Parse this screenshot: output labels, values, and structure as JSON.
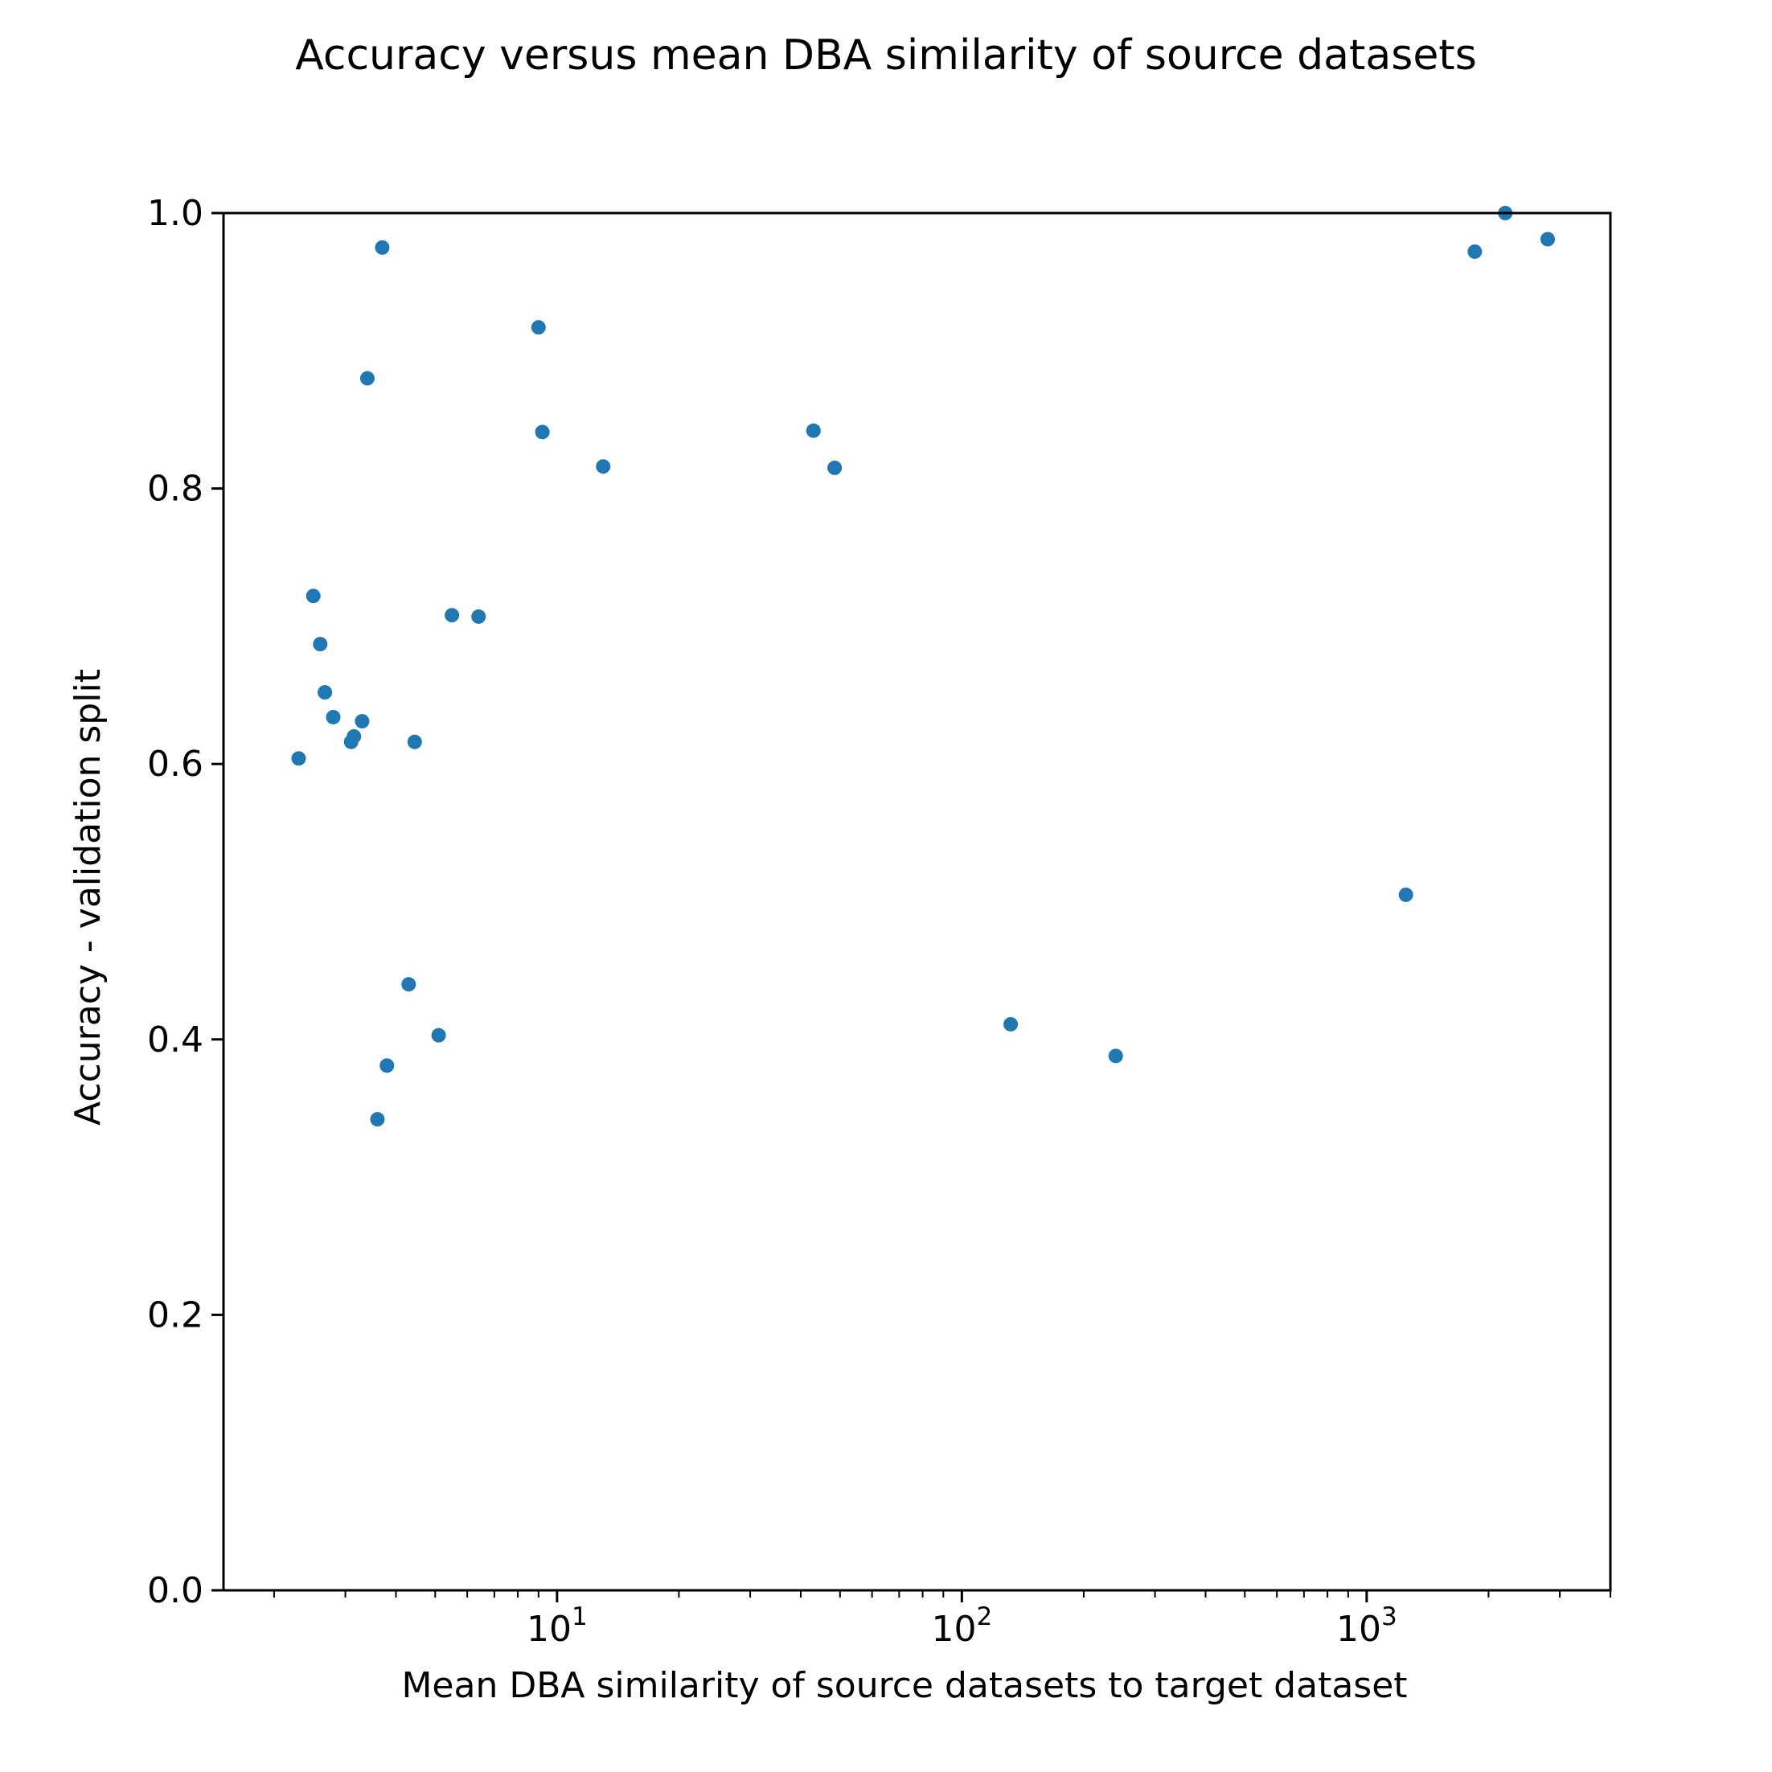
{
  "chart_data": {
    "type": "scatter",
    "title": "Accuracy versus mean DBA similarity of source datasets",
    "xlabel": "Mean DBA similarity of source datasets to target dataset",
    "ylabel": "Accuracy - validation split",
    "xscale": "log",
    "xlim": [
      1.5,
      4000
    ],
    "ylim": [
      0.0,
      1.0
    ],
    "grid": false,
    "legend": "none",
    "color": "#1f77b4",
    "yticks": [
      0.0,
      0.2,
      0.4,
      0.6,
      0.8,
      1.0
    ],
    "ytick_labels": [
      "0.0",
      "0.2",
      "0.4",
      "0.6",
      "0.8",
      "1.0"
    ],
    "xticks": [
      {
        "value": 10,
        "base": "10",
        "exp": "1"
      },
      {
        "value": 100,
        "base": "10",
        "exp": "2"
      },
      {
        "value": 1000,
        "base": "10",
        "exp": "3"
      }
    ],
    "points": [
      {
        "x": 2.3,
        "y": 0.604
      },
      {
        "x": 2.5,
        "y": 0.722
      },
      {
        "x": 2.6,
        "y": 0.687
      },
      {
        "x": 2.67,
        "y": 0.652
      },
      {
        "x": 2.8,
        "y": 0.634
      },
      {
        "x": 3.1,
        "y": 0.616
      },
      {
        "x": 3.15,
        "y": 0.62
      },
      {
        "x": 3.3,
        "y": 0.631
      },
      {
        "x": 3.4,
        "y": 0.88
      },
      {
        "x": 3.6,
        "y": 0.342
      },
      {
        "x": 3.7,
        "y": 0.975
      },
      {
        "x": 3.8,
        "y": 0.381
      },
      {
        "x": 4.3,
        "y": 0.44
      },
      {
        "x": 4.45,
        "y": 0.616
      },
      {
        "x": 5.1,
        "y": 0.403
      },
      {
        "x": 5.5,
        "y": 0.708
      },
      {
        "x": 6.4,
        "y": 0.707
      },
      {
        "x": 9.0,
        "y": 0.917
      },
      {
        "x": 9.2,
        "y": 0.841
      },
      {
        "x": 13.0,
        "y": 0.816
      },
      {
        "x": 43.0,
        "y": 0.842
      },
      {
        "x": 48.5,
        "y": 0.815
      },
      {
        "x": 132.0,
        "y": 0.411
      },
      {
        "x": 240.0,
        "y": 0.388
      },
      {
        "x": 1250.0,
        "y": 0.505
      },
      {
        "x": 1850.0,
        "y": 0.972
      },
      {
        "x": 2200.0,
        "y": 1.0
      },
      {
        "x": 2800.0,
        "y": 0.981
      }
    ]
  }
}
